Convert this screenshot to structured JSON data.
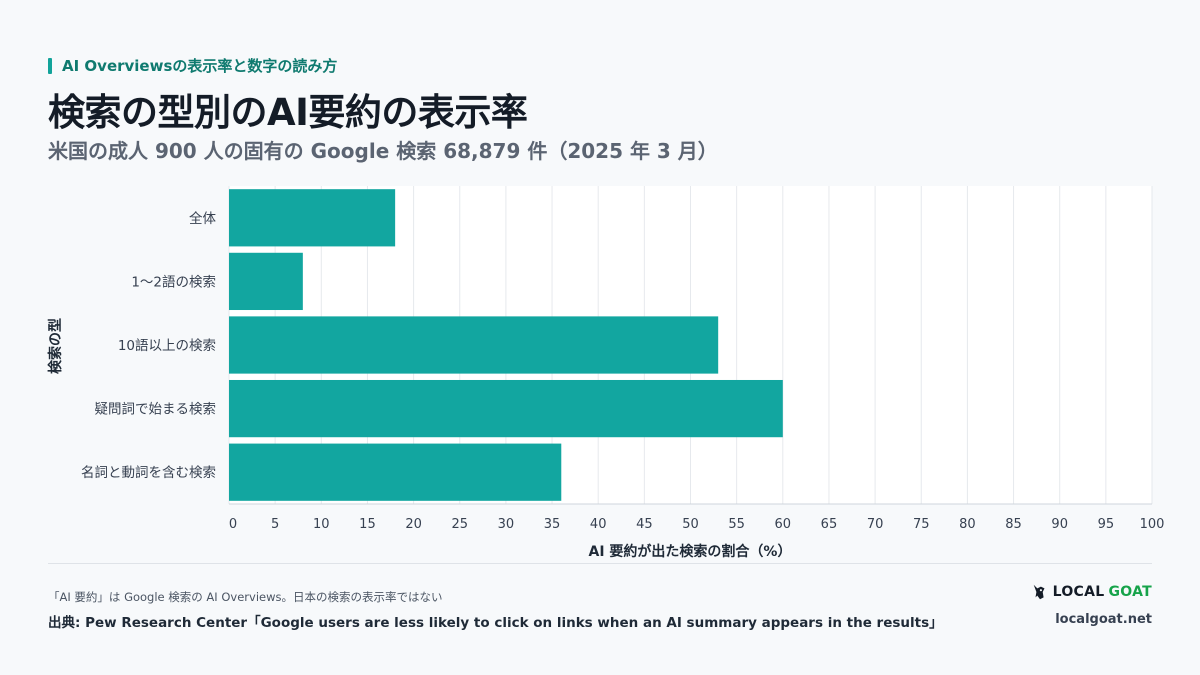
{
  "header": {
    "kicker": "AI Overviewsの表示率と数字の読み方",
    "title": "検索の型別のAI要約の表示率",
    "subtitle": "米国の成人 900 人の固有の Google 検索 68,879 件（2025 年 3 月）"
  },
  "chart_data": {
    "type": "bar",
    "orientation": "horizontal",
    "categories": [
      "全体",
      "1〜2語の検索",
      "10語以上の検索",
      "疑問詞で始まる検索",
      "名詞と動詞を含む検索"
    ],
    "values": [
      18,
      8,
      53,
      60,
      36
    ],
    "xlabel": "AI 要約が出た検索の割合（%）",
    "ylabel": "検索の型",
    "xlim": [
      0,
      100
    ],
    "xticks": [
      0,
      5,
      10,
      15,
      20,
      25,
      30,
      35,
      40,
      45,
      50,
      55,
      60,
      65,
      70,
      75,
      80,
      85,
      90,
      95,
      100
    ],
    "grid": true,
    "bar_color": "#12a6a0"
  },
  "footer": {
    "note": "「AI 要約」は Google 検索の AI Overviews。日本の検索の表示率ではない",
    "source": "出典: Pew Research Center「Google users are less likely to click on links when an AI summary appears in the results」",
    "brand_left": "LOCAL",
    "brand_right": "GOAT",
    "site": "localgoat.net"
  },
  "colors": {
    "accent": "#12a39a",
    "brand_green": "#16a34a"
  }
}
